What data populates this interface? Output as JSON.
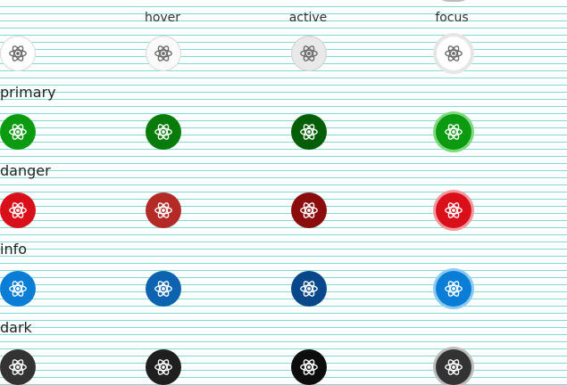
{
  "headers": [
    "hover",
    "active",
    "focus"
  ],
  "sections": [
    {
      "key": "default",
      "label": "",
      "icon_color": "#6b6b6b",
      "states": [
        {
          "bg": "#ffffff",
          "border": "#d8d8d8"
        },
        {
          "bg": "#fafafa",
          "border": "#d8d8d8"
        },
        {
          "bg": "#e9e9e9",
          "border": "#d0d0d0"
        },
        {
          "bg": "#ffffff",
          "border": "#e2e2e2",
          "ring": "#e6e6e6"
        }
      ]
    },
    {
      "key": "primary",
      "label": "primary",
      "icon_color": "#ffffff",
      "states": [
        {
          "bg": "#0c9a10"
        },
        {
          "bg": "#077c0a"
        },
        {
          "bg": "#045e07"
        },
        {
          "bg": "#0c9a10",
          "ring": "#7fd97f"
        }
      ]
    },
    {
      "key": "danger",
      "label": "danger",
      "icon_color": "#ffffff",
      "states": [
        {
          "bg": "#d9101a"
        },
        {
          "bg": "#b42a26"
        },
        {
          "bg": "#8a0c0c"
        },
        {
          "bg": "#d9101a",
          "ring": "#f29aa0"
        }
      ]
    },
    {
      "key": "info",
      "label": "info",
      "icon_color": "#ffffff",
      "states": [
        {
          "bg": "#0a7ed6"
        },
        {
          "bg": "#0c63b0"
        },
        {
          "bg": "#08488a"
        },
        {
          "bg": "#0a7ed6",
          "ring": "#8ccaf6"
        }
      ]
    },
    {
      "key": "dark",
      "label": "dark",
      "icon_color": "#ffffff",
      "states": [
        {
          "bg": "#333333"
        },
        {
          "bg": "#1f1f1f"
        },
        {
          "bg": "#0d0d0d"
        },
        {
          "bg": "#333333",
          "ring": "#bdbdbd"
        }
      ]
    }
  ],
  "icon": "atom-icon"
}
